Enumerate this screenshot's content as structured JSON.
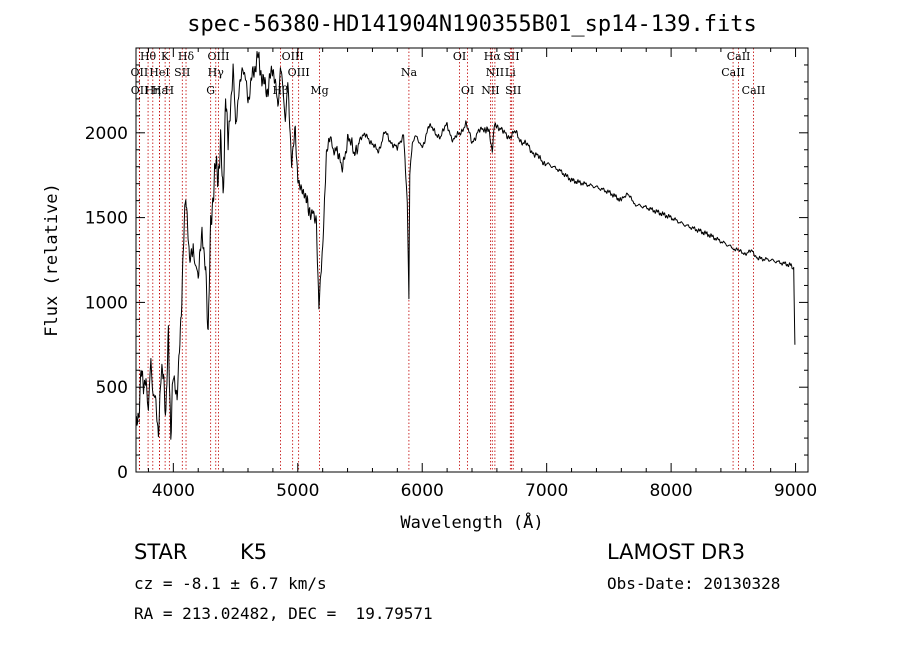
{
  "chart_data": {
    "type": "line",
    "title": "spec-56380-HD141904N190355B01_sp14-139.fits",
    "xlabel": "Wavelength (Å)",
    "ylabel": "Flux (relative)",
    "xlim": [
      3700,
      9100
    ],
    "ylim": [
      0,
      2500
    ],
    "xticks": [
      4000,
      5000,
      6000,
      7000,
      8000,
      9000
    ],
    "yticks": [
      0,
      500,
      1000,
      1500,
      2000
    ],
    "grid": false,
    "series": [
      {
        "name": "flux",
        "x": [
          3700,
          3720,
          3740,
          3760,
          3780,
          3800,
          3820,
          3840,
          3860,
          3880,
          3900,
          3920,
          3940,
          3960,
          3980,
          4000,
          4030,
          4060,
          4080,
          4100,
          4130,
          4160,
          4200,
          4230,
          4260,
          4280,
          4300,
          4320,
          4340,
          4360,
          4380,
          4400,
          4420,
          4440,
          4460,
          4480,
          4500,
          4530,
          4560,
          4600,
          4640,
          4680,
          4720,
          4760,
          4800,
          4840,
          4860,
          4880,
          4900,
          4920,
          4950,
          4980,
          5000,
          5030,
          5060,
          5100,
          5150,
          5170,
          5185,
          5200,
          5230,
          5260,
          5300,
          5350,
          5400,
          5450,
          5500,
          5550,
          5600,
          5650,
          5700,
          5750,
          5800,
          5850,
          5880,
          5893,
          5900,
          5920,
          5960,
          6000,
          6050,
          6100,
          6150,
          6200,
          6250,
          6300,
          6350,
          6400,
          6450,
          6500,
          6540,
          6563,
          6580,
          6600,
          6650,
          6700,
          6750,
          6800,
          6850,
          6900,
          6950,
          7000,
          7100,
          7200,
          7300,
          7400,
          7500,
          7600,
          7650,
          7700,
          7800,
          7900,
          8000,
          8100,
          8200,
          8300,
          8400,
          8500,
          8550,
          8600,
          8650,
          8700,
          8800,
          8900,
          8960,
          8985,
          8995
        ],
        "y": [
          250,
          300,
          640,
          450,
          600,
          320,
          680,
          450,
          380,
          260,
          520,
          620,
          320,
          800,
          250,
          560,
          380,
          870,
          1350,
          1600,
          1200,
          1350,
          1100,
          1400,
          1250,
          800,
          1450,
          1650,
          1800,
          1750,
          1950,
          1600,
          2250,
          1900,
          2200,
          2350,
          2050,
          2300,
          2400,
          2200,
          2350,
          2450,
          2300,
          2250,
          2400,
          2150,
          2400,
          2250,
          2100,
          2280,
          1800,
          2000,
          1750,
          1700,
          1600,
          1550,
          1450,
          1000,
          1200,
          1350,
          1850,
          1950,
          1900,
          1800,
          1950,
          1900,
          1950,
          2000,
          1920,
          1900,
          2000,
          1950,
          1900,
          2000,
          1600,
          1000,
          1750,
          1950,
          1980,
          1900,
          2050,
          2000,
          1980,
          2050,
          1950,
          2000,
          2050,
          1950,
          2000,
          2030,
          2000,
          1900,
          2040,
          2050,
          2000,
          1980,
          2000,
          1950,
          1920,
          1880,
          1840,
          1820,
          1780,
          1720,
          1700,
          1680,
          1650,
          1600,
          1650,
          1580,
          1560,
          1530,
          1500,
          1460,
          1430,
          1400,
          1360,
          1320,
          1300,
          1290,
          1300,
          1260,
          1250,
          1230,
          1220,
          1200,
          750
        ]
      }
    ],
    "lines": [
      {
        "label": "Hθ",
        "wavelength": 3797,
        "row": 0
      },
      {
        "label": "K",
        "wavelength": 3934,
        "row": 0
      },
      {
        "label": "Hδ",
        "wavelength": 4102,
        "row": 0
      },
      {
        "label": "OIII",
        "wavelength": 4363,
        "row": 0
      },
      {
        "label": "OIII",
        "wavelength": 4959,
        "row": 0
      },
      {
        "label": "OI",
        "wavelength": 6300,
        "row": 0
      },
      {
        "label": "Hα",
        "wavelength": 6563,
        "row": 0
      },
      {
        "label": "SII",
        "wavelength": 6717,
        "row": 0
      },
      {
        "label": "CaII",
        "wavelength": 8542,
        "row": 0
      },
      {
        "label": "OII",
        "wavelength": 3727,
        "row": 1
      },
      {
        "label": "HeI",
        "wavelength": 3889,
        "row": 1
      },
      {
        "label": "SII",
        "wavelength": 4072,
        "row": 1
      },
      {
        "label": "Hγ",
        "wavelength": 4341,
        "row": 1
      },
      {
        "label": "OIII",
        "wavelength": 5007,
        "row": 1
      },
      {
        "label": "Na",
        "wavelength": 5893,
        "row": 1
      },
      {
        "label": "NII",
        "wavelength": 6584,
        "row": 1
      },
      {
        "label": "Li",
        "wavelength": 6708,
        "row": 1
      },
      {
        "label": "CaII",
        "wavelength": 8498,
        "row": 1
      },
      {
        "label": "OII",
        "wavelength": 3729,
        "row": 2
      },
      {
        "label": "Hε",
        "wavelength": 3889,
        "row": 2
      },
      {
        "label": "Hη",
        "wavelength": 3835,
        "row": 2
      },
      {
        "label": "H",
        "wavelength": 3968,
        "row": 2
      },
      {
        "label": "G",
        "wavelength": 4300,
        "row": 2
      },
      {
        "label": "Hβ",
        "wavelength": 4861,
        "row": 2
      },
      {
        "label": "Mg",
        "wavelength": 5175,
        "row": 2
      },
      {
        "label": "OI",
        "wavelength": 6364,
        "row": 2
      },
      {
        "label": "NII",
        "wavelength": 6548,
        "row": 2
      },
      {
        "label": "SII",
        "wavelength": 6731,
        "row": 2
      },
      {
        "label": "CaII",
        "wavelength": 8662,
        "row": 2
      }
    ]
  },
  "info": {
    "class": "STAR",
    "subclass": "K5",
    "survey": "LAMOST DR3",
    "cz": "cz = -8.1 ± 6.7 km/s",
    "obs_date": "Obs-Date: 20130328",
    "coords": "RA = 213.02482, DEC =  19.79571"
  }
}
